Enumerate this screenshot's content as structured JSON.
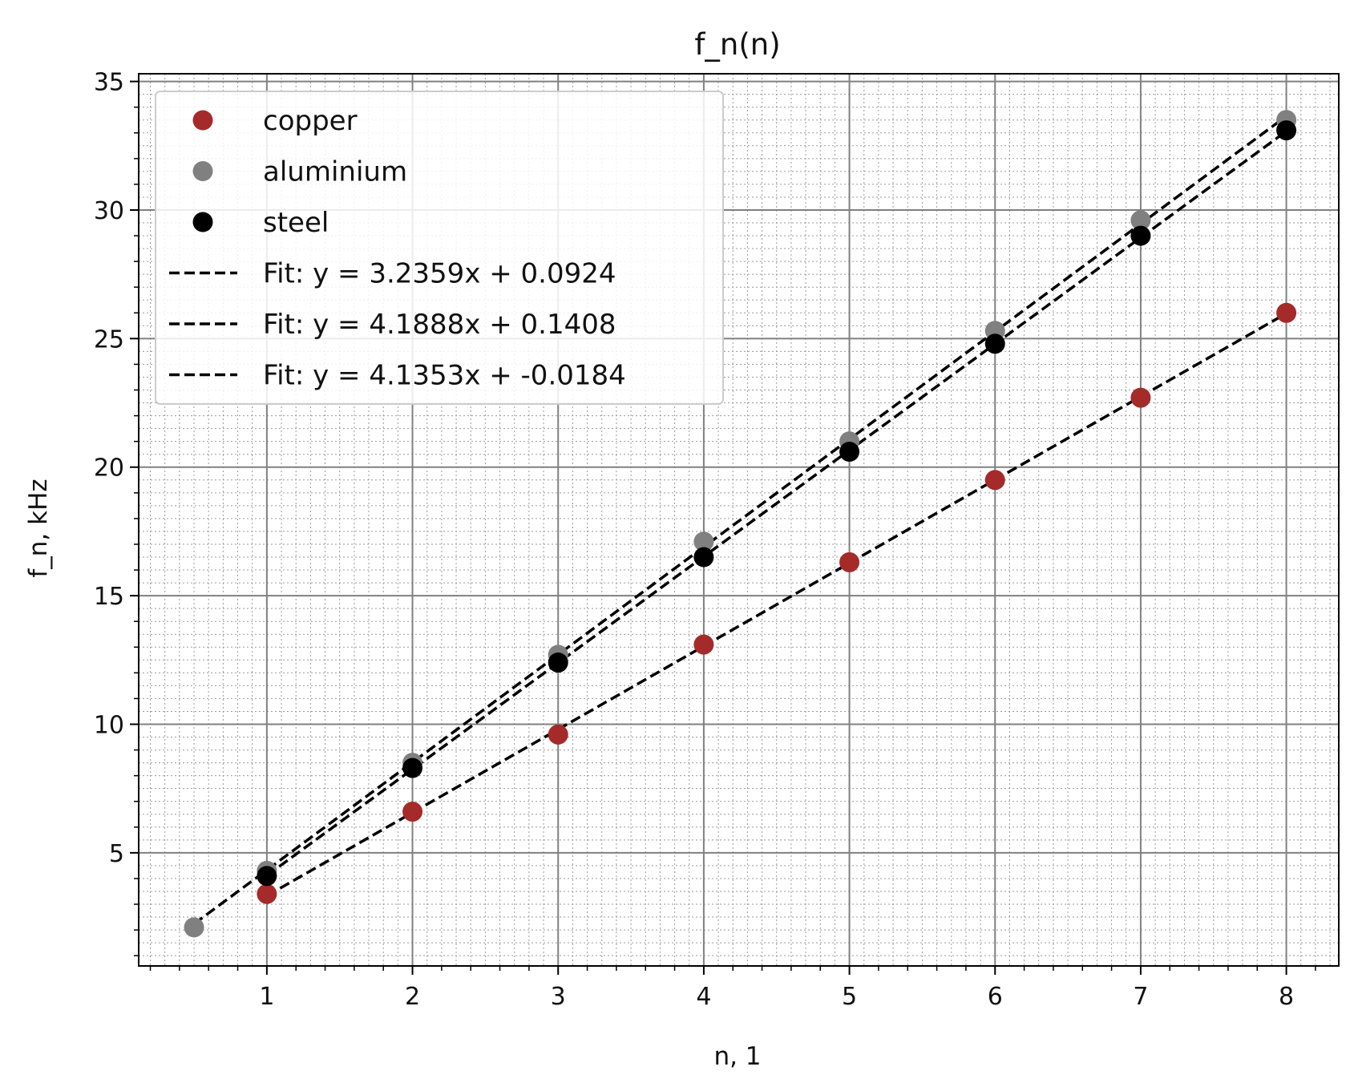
{
  "chart_data": {
    "type": "scatter",
    "title": "f_n(n)",
    "xlabel": "n, 1",
    "ylabel": "f_n, kHz",
    "xlim": [
      0.12,
      8.36
    ],
    "ylim": [
      0.6,
      35.3
    ],
    "xticks": [
      1,
      2,
      3,
      4,
      5,
      6,
      7,
      8
    ],
    "yticks": [
      5,
      10,
      15,
      20,
      25,
      30,
      35
    ],
    "grid": {
      "major": true,
      "minor": true
    },
    "legend_position": "top-left",
    "series": [
      {
        "name": "copper",
        "kind": "points",
        "color": "#a52a2a",
        "x": [
          1,
          2,
          3,
          4,
          5,
          6,
          7,
          8
        ],
        "y": [
          3.4,
          6.6,
          9.6,
          13.1,
          16.3,
          19.5,
          22.7,
          26.0
        ]
      },
      {
        "name": "aluminium",
        "kind": "points",
        "color": "#808080",
        "x": [
          0.5,
          1,
          2,
          3,
          4,
          5,
          6,
          7,
          8
        ],
        "y": [
          2.1,
          4.3,
          8.5,
          12.7,
          17.1,
          21.0,
          25.3,
          29.6,
          33.5
        ]
      },
      {
        "name": "steel",
        "kind": "points",
        "color": "#000000",
        "x": [
          1,
          2,
          3,
          4,
          5,
          6,
          7,
          8
        ],
        "y": [
          4.1,
          8.3,
          12.4,
          16.5,
          20.6,
          24.8,
          29.0,
          33.1
        ]
      },
      {
        "name": "Fit: y = 3.2359x + 0.0924",
        "kind": "fit",
        "color": "#000000",
        "slope": 3.2359,
        "intercept": 0.0924,
        "x_range": [
          1,
          8
        ]
      },
      {
        "name": "Fit: y = 4.1888x + 0.1408",
        "kind": "fit",
        "color": "#000000",
        "slope": 4.1888,
        "intercept": 0.1408,
        "x_range": [
          0.5,
          8
        ]
      },
      {
        "name": "Fit: y = 4.1353x + -0.0184",
        "kind": "fit",
        "color": "#000000",
        "slope": 4.1353,
        "intercept": -0.0184,
        "x_range": [
          1,
          8
        ]
      }
    ]
  }
}
